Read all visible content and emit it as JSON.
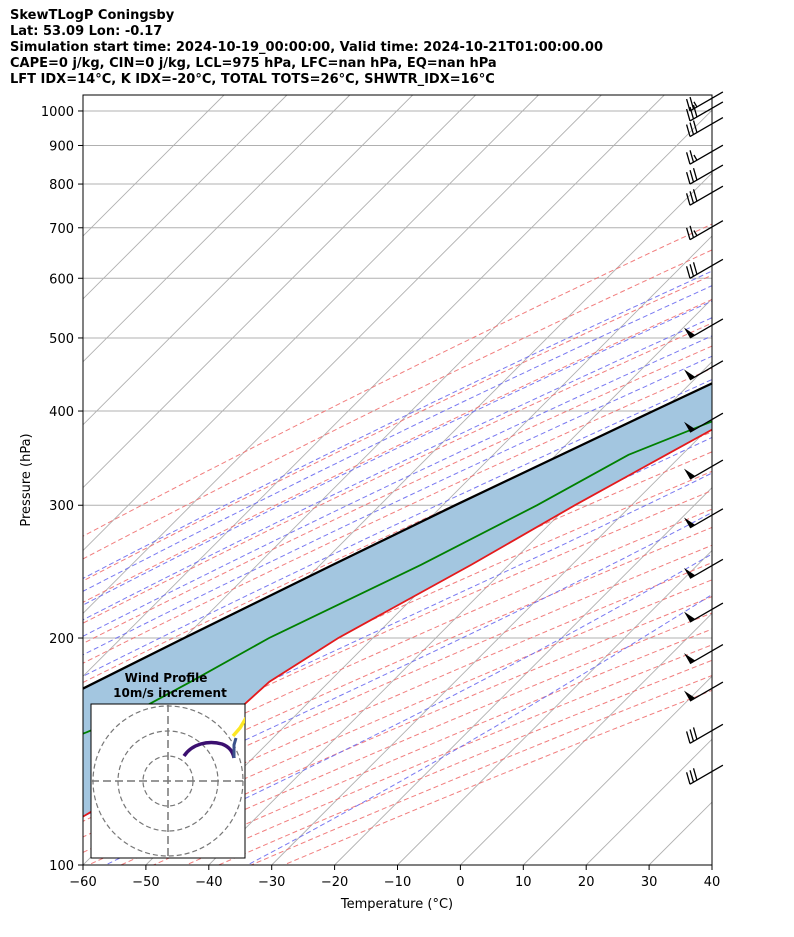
{
  "header": {
    "title": "SkewTLogP Coningsby",
    "location": "Lat: 53.09   Lon: -0.17",
    "times": "Simulation start time: 2024-10-19_00:00:00, Valid time: 2024-10-21T01:00:00.00",
    "indices1": "CAPE=0 j/kg, CIN=0 j/kg, LCL=975 hPa, LFC=nan hPa, EQ=nan hPa",
    "indices2": "LFT IDX=14°C, K IDX=-20°C, TOTAL TOTS=26°C, SHWTR_IDX=16°C"
  },
  "chart_data": {
    "type": "line",
    "subtype": "skewt-logp",
    "xlabel": "Temperature (°C)",
    "ylabel": "Pressure (hPa)",
    "xlim": [
      -60,
      40
    ],
    "ylim": [
      1050,
      100
    ],
    "y_scale": "log",
    "x_ticks": [
      -60,
      -50,
      -40,
      -30,
      -20,
      -10,
      0,
      10,
      20,
      30,
      40
    ],
    "x_tick_labels": [
      "−60",
      "−50",
      "−40",
      "−30",
      "−20",
      "−10",
      "0",
      "10",
      "20",
      "30",
      "40"
    ],
    "y_ticks": [
      1000,
      900,
      800,
      700,
      600,
      500,
      400,
      300,
      200,
      100
    ],
    "y_tick_labels": [
      "1000",
      "900",
      "800",
      "700",
      "600",
      "500",
      "400",
      "300",
      "200",
      "100"
    ],
    "colors": {
      "temperature": "#e41a1c",
      "dewpoint": "#008000",
      "parcel": "#000000",
      "shade": "#a3c6e0",
      "isotherm": "#b0b0b0",
      "dry_adiabat": "#f07070",
      "moist_adiabat": "#6a6af0",
      "mixing_ratio": "#9c4fd0",
      "grid": "#b0b0b0"
    },
    "temperature": [
      {
        "p": 1020,
        "t": 10.3
      },
      {
        "p": 1000,
        "t": 11.2
      },
      {
        "p": 975,
        "t": 11.6
      },
      {
        "p": 950,
        "t": 10.4
      },
      {
        "p": 900,
        "t": 7.8
      },
      {
        "p": 850,
        "t": 5.4
      },
      {
        "p": 800,
        "t": 2.6
      },
      {
        "p": 750,
        "t": -0.4
      },
      {
        "p": 700,
        "t": -3.6
      },
      {
        "p": 650,
        "t": -7.2
      },
      {
        "p": 600,
        "t": -10.8
      },
      {
        "p": 550,
        "t": -14.3
      },
      {
        "p": 500,
        "t": -17.8
      },
      {
        "p": 450,
        "t": -21.8
      },
      {
        "p": 400,
        "t": -26.8
      },
      {
        "p": 350,
        "t": -32.5
      },
      {
        "p": 300,
        "t": -39.0
      },
      {
        "p": 250,
        "t": -46.0
      },
      {
        "p": 200,
        "t": -55.5
      },
      {
        "p": 175,
        "t": -59.5
      },
      {
        "p": 160,
        "t": -60.0
      },
      {
        "p": 150,
        "t": -59.3
      },
      {
        "p": 140,
        "t": -60.4
      },
      {
        "p": 130,
        "t": -63.8
      },
      {
        "p": 120,
        "t": -66.5
      },
      {
        "p": 110,
        "t": -69.5
      },
      {
        "p": 100,
        "t": -72.3
      }
    ],
    "dewpoint": [
      {
        "p": 1020,
        "t": 9.1
      },
      {
        "p": 1000,
        "t": 9.6
      },
      {
        "p": 975,
        "t": 8.6
      },
      {
        "p": 950,
        "t": 6.1
      },
      {
        "p": 925,
        "t": 3.8
      },
      {
        "p": 900,
        "t": 0.3
      },
      {
        "p": 850,
        "t": -10.0
      },
      {
        "p": 800,
        "t": -24.0
      },
      {
        "p": 750,
        "t": -33.0
      },
      {
        "p": 700,
        "t": -38.5
      },
      {
        "p": 650,
        "t": -43.0
      },
      {
        "p": 600,
        "t": -48.5
      },
      {
        "p": 550,
        "t": -36.0
      },
      {
        "p": 500,
        "t": -22.0
      },
      {
        "p": 470,
        "t": -18.5
      },
      {
        "p": 430,
        "t": -21.0
      },
      {
        "p": 400,
        "t": -28.0
      },
      {
        "p": 350,
        "t": -38.5
      },
      {
        "p": 300,
        "t": -45.0
      },
      {
        "p": 250,
        "t": -54.0
      },
      {
        "p": 200,
        "t": -66.5
      },
      {
        "p": 175,
        "t": -72.0
      },
      {
        "p": 160,
        "t": -76.0
      },
      {
        "p": 150,
        "t": -80.5
      },
      {
        "p": 140,
        "t": -86.0
      },
      {
        "p": 130,
        "t": -84.5
      },
      {
        "p": 120,
        "t": -82.5
      },
      {
        "p": 110,
        "t": -80.5
      },
      {
        "p": 100,
        "t": -78.5
      }
    ],
    "parcel": [
      {
        "p": 1020,
        "t": 10.3
      },
      {
        "p": 1000,
        "t": 9.2
      },
      {
        "p": 975,
        "t": 8.2
      },
      {
        "p": 950,
        "t": 6.7
      },
      {
        "p": 900,
        "t": 3.5
      },
      {
        "p": 850,
        "t": 0.3
      },
      {
        "p": 800,
        "t": -3.0
      },
      {
        "p": 700,
        "t": -10.0
      },
      {
        "p": 600,
        "t": -18.5
      },
      {
        "p": 500,
        "t": -28.5
      },
      {
        "p": 400,
        "t": -41.5
      },
      {
        "p": 300,
        "t": -58.0
      },
      {
        "p": 250,
        "t": -68.0
      },
      {
        "p": 200,
        "t": -80.0
      },
      {
        "p": 150,
        "t": -95.0
      },
      {
        "p": 100,
        "t": -117.0
      }
    ],
    "wind_barbs_note": "wind barbs plotted at right edge",
    "wind_barbs": [
      {
        "p": 1000,
        "speed_kt": 25,
        "dir_deg": 240
      },
      {
        "p": 970,
        "speed_kt": 30,
        "dir_deg": 240
      },
      {
        "p": 925,
        "speed_kt": 30,
        "dir_deg": 240
      },
      {
        "p": 850,
        "speed_kt": 25,
        "dir_deg": 240
      },
      {
        "p": 800,
        "speed_kt": 30,
        "dir_deg": 240
      },
      {
        "p": 750,
        "speed_kt": 30,
        "dir_deg": 240
      },
      {
        "p": 675,
        "speed_kt": 25,
        "dir_deg": 240
      },
      {
        "p": 600,
        "speed_kt": 30,
        "dir_deg": 240
      },
      {
        "p": 500,
        "speed_kt": 50,
        "dir_deg": 240
      },
      {
        "p": 440,
        "speed_kt": 50,
        "dir_deg": 240
      },
      {
        "p": 375,
        "speed_kt": 50,
        "dir_deg": 240
      },
      {
        "p": 325,
        "speed_kt": 50,
        "dir_deg": 240
      },
      {
        "p": 280,
        "speed_kt": 50,
        "dir_deg": 240
      },
      {
        "p": 240,
        "speed_kt": 50,
        "dir_deg": 240
      },
      {
        "p": 210,
        "speed_kt": 50,
        "dir_deg": 240
      },
      {
        "p": 185,
        "speed_kt": 50,
        "dir_deg": 240
      },
      {
        "p": 165,
        "speed_kt": 50,
        "dir_deg": 240
      },
      {
        "p": 145,
        "speed_kt": 30,
        "dir_deg": 240
      },
      {
        "p": 128,
        "speed_kt": 30,
        "dir_deg": 240
      }
    ],
    "hodograph": {
      "title": "Wind Profile",
      "subtitle": "10m/s increment"
    }
  }
}
